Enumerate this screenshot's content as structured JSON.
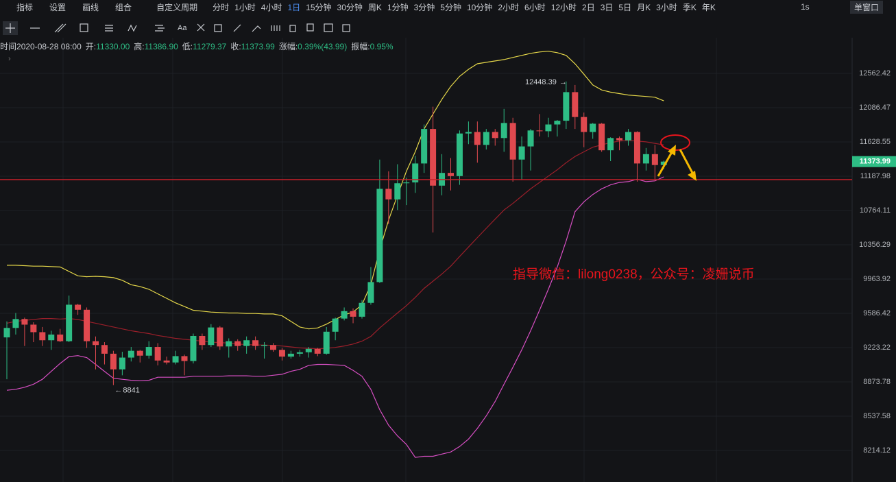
{
  "toolbar": {
    "menu": [
      "指标",
      "设置",
      "画线",
      "组合"
    ],
    "custom_period": "自定义周期",
    "periods": [
      {
        "label": "分时"
      },
      {
        "label": "1小时"
      },
      {
        "label": "4小时"
      },
      {
        "label": "1日",
        "active": true
      },
      {
        "label": "15分钟"
      },
      {
        "label": "30分钟"
      },
      {
        "label": "周K"
      },
      {
        "label": "1分钟"
      },
      {
        "label": "3分钟"
      },
      {
        "label": "5分钟"
      },
      {
        "label": "10分钟"
      },
      {
        "label": "2小时"
      },
      {
        "label": "6小时"
      },
      {
        "label": "12小时"
      },
      {
        "label": "2日"
      },
      {
        "label": "3日"
      },
      {
        "label": "5日"
      },
      {
        "label": "月K"
      },
      {
        "label": "3小时"
      },
      {
        "label": "季K"
      },
      {
        "label": "年K"
      }
    ],
    "interval": "1s",
    "window": "单窗口",
    "text_tool": "Aa"
  },
  "info_bar": [
    {
      "label": "时间",
      "value": "2020-08-28 08:00"
    },
    {
      "label": "开:",
      "value": "11330.00"
    },
    {
      "label": "高:",
      "value": "11386.90"
    },
    {
      "label": "低:",
      "value": "11279.37"
    },
    {
      "label": "收:",
      "value": "11373.99"
    },
    {
      "label": "涨幅:",
      "value": "0.39%(43.99)"
    },
    {
      "label": "振幅:",
      "value": "0.95%"
    }
  ],
  "chart_data": {
    "type": "candlestick",
    "log_scale": true,
    "grid": true,
    "up_color": "#2ebd85",
    "down_color": "#e0494f",
    "ylim": [
      7927,
      13078
    ],
    "yticks": [
      8214.12,
      8537.58,
      8873.78,
      9223.22,
      9586.42,
      9963.92,
      10356.29,
      10764.11,
      11187.98,
      11628.55,
      12086.47,
      12562.42
    ],
    "open": [
      9330,
      9430,
      9525,
      9465,
      9385,
      9300,
      9360,
      9290,
      9680,
      9625,
      9290,
      9250,
      9160,
      9000,
      9120,
      9190,
      9140,
      9230,
      9090,
      9070,
      9135,
      9085,
      9345,
      9250,
      9435,
      9235,
      9290,
      9240,
      9300,
      9240,
      9250,
      9200,
      9130,
      9160,
      9175,
      9210,
      9160,
      9390,
      9530,
      9610,
      9550,
      9700,
      9930,
      11030,
      10900,
      11100,
      11110,
      11350,
      11800,
      11070,
      11230,
      11190,
      11740,
      11760,
      11590,
      11760,
      11680,
      11880,
      11400,
      11570,
      11780,
      11770,
      11860,
      11910,
      12300,
      11960,
      11760,
      11870,
      11520,
      11680,
      11650,
      11760,
      11350,
      11470,
      11330
    ],
    "high": [
      9500,
      9590,
      9540,
      9490,
      9440,
      9400,
      9420,
      9780,
      9690,
      9650,
      9340,
      9280,
      9190,
      9180,
      9230,
      9200,
      9290,
      9270,
      9130,
      9190,
      9150,
      9370,
      9370,
      9470,
      9450,
      9320,
      9310,
      9340,
      9340,
      9280,
      9270,
      9220,
      9190,
      9200,
      9230,
      9220,
      9440,
      9540,
      9650,
      9640,
      9730,
      10100,
      11400,
      11250,
      11340,
      11170,
      11450,
      11860,
      12100,
      11470,
      11420,
      11780,
      11900,
      11900,
      11800,
      11800,
      12070,
      11950,
      11700,
      11800,
      12000,
      11950,
      11920,
      12448.39,
      12400,
      12020,
      11880,
      11880,
      11690,
      11700,
      11800,
      11770,
      11550,
      11590,
      11386.9
    ],
    "low": [
      8900,
      9360,
      9240,
      9280,
      9240,
      9200,
      9280,
      9280,
      9570,
      9220,
      9000,
      9050,
      8841,
      8940,
      9080,
      9070,
      9110,
      9040,
      9050,
      9050,
      8940,
      9060,
      9200,
      9230,
      9200,
      9120,
      9190,
      9160,
      9200,
      9110,
      9180,
      9090,
      9110,
      9130,
      9120,
      9135,
      9150,
      9300,
      9510,
      9480,
      9530,
      9680,
      9920,
      10600,
      10770,
      10830,
      10980,
      11230,
      10500,
      10950,
      11010,
      11080,
      11600,
      11360,
      11530,
      11580,
      11500,
      11120,
      11140,
      11260,
      11700,
      11690,
      11700,
      11800,
      11800,
      11560,
      11670,
      11500,
      11380,
      11520,
      11580,
      11120,
      11260,
      11130,
      11279.37
    ],
    "close": [
      9430,
      9525,
      9465,
      9385,
      9300,
      9360,
      9290,
      9680,
      9625,
      9290,
      9250,
      9160,
      9000,
      9120,
      9190,
      9140,
      9230,
      9090,
      9070,
      9135,
      9085,
      9345,
      9250,
      9435,
      9235,
      9290,
      9240,
      9300,
      9240,
      9250,
      9200,
      9130,
      9160,
      9175,
      9210,
      9160,
      9390,
      9530,
      9610,
      9550,
      9700,
      9930,
      11030,
      10900,
      11100,
      11110,
      11350,
      11800,
      11070,
      11230,
      11190,
      11740,
      11760,
      11590,
      11760,
      11680,
      11880,
      11400,
      11570,
      11780,
      11770,
      11860,
      11910,
      12300,
      11960,
      11760,
      11870,
      11520,
      11680,
      11650,
      11760,
      11350,
      11470,
      11330,
      11373.99
    ],
    "bands": [
      {
        "color": "#e6d84a",
        "values": [
          10120,
          10120,
          10115,
          10110,
          10110,
          10105,
          10100,
          10050,
          10000,
          9990,
          9995,
          9990,
          9980,
          9950,
          9900,
          9880,
          9850,
          9800,
          9750,
          9700,
          9660,
          9620,
          9610,
          9600,
          9595,
          9590,
          9590,
          9585,
          9585,
          9580,
          9580,
          9560,
          9500,
          9440,
          9420,
          9430,
          9470,
          9520,
          9570,
          9600,
          9680,
          9900,
          10300,
          10650,
          10950,
          11250,
          11500,
          11800,
          12000,
          12200,
          12380,
          12520,
          12620,
          12700,
          12720,
          12740,
          12760,
          12790,
          12820,
          12850,
          12870,
          12880,
          12860,
          12820,
          12700,
          12550,
          12400,
          12330,
          12300,
          12280,
          12260,
          12250,
          12240,
          12230,
          12180
        ]
      },
      {
        "color": "#9b1f2a",
        "values": [
          9480,
          9500,
          9510,
          9520,
          9530,
          9530,
          9525,
          9530,
          9520,
          9500,
          9480,
          9460,
          9440,
          9420,
          9400,
          9385,
          9370,
          9350,
          9335,
          9320,
          9310,
          9300,
          9290,
          9280,
          9275,
          9270,
          9260,
          9255,
          9250,
          9250,
          9245,
          9240,
          9230,
          9220,
          9215,
          9210,
          9215,
          9225,
          9240,
          9260,
          9290,
          9340,
          9430,
          9510,
          9590,
          9670,
          9760,
          9860,
          9940,
          10020,
          10110,
          10220,
          10330,
          10440,
          10550,
          10660,
          10770,
          10850,
          10940,
          11030,
          11110,
          11190,
          11270,
          11360,
          11440,
          11500,
          11560,
          11590,
          11620,
          11640,
          11650,
          11640,
          11630,
          11610,
          11590
        ]
      },
      {
        "color": "#d84fc4",
        "values": [
          8790,
          8800,
          8820,
          8850,
          8900,
          8980,
          9060,
          9130,
          9140,
          9120,
          9050,
          8980,
          8910,
          8900,
          8890,
          8885,
          8890,
          8920,
          8920,
          8920,
          8920,
          8930,
          8930,
          8930,
          8930,
          8935,
          8935,
          8935,
          8930,
          8930,
          8940,
          8950,
          8980,
          9000,
          9040,
          9050,
          9050,
          9045,
          9040,
          8990,
          8930,
          8800,
          8600,
          8450,
          8350,
          8270,
          8150,
          8160,
          8160,
          8180,
          8200,
          8250,
          8320,
          8420,
          8540,
          8680,
          8850,
          9020,
          9200,
          9400,
          9620,
          9850,
          10100,
          10400,
          10750,
          10870,
          10960,
          11030,
          11080,
          11110,
          11120,
          11150,
          11120,
          11130,
          11180
        ]
      }
    ],
    "horizontal_line": {
      "value": 11145,
      "color": "#c8202a"
    },
    "annotation": "指导微信：lilong0238，公众号：凌姗说币"
  }
}
